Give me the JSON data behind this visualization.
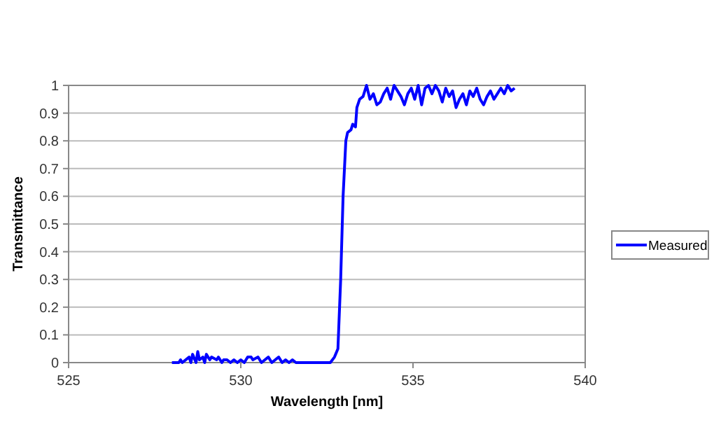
{
  "chart_data": {
    "type": "line",
    "xlabel": "Wavelength [nm]",
    "ylabel": "Transmittance",
    "xlim": [
      525,
      540
    ],
    "xticks": [
      525,
      530,
      535,
      540
    ],
    "ylim": [
      0,
      1
    ],
    "yticks": [
      0,
      0.1,
      0.2,
      0.3,
      0.4,
      0.5,
      0.6,
      0.7,
      0.8,
      0.9,
      1
    ],
    "grid": "y",
    "legend": "right",
    "marker": "none",
    "line_style": "solid",
    "series": [
      {
        "name": "Measured",
        "color": "#0000ff",
        "x": [
          528.0,
          528.2,
          528.25,
          528.3,
          528.5,
          528.55,
          528.6,
          528.7,
          528.75,
          528.8,
          528.9,
          528.95,
          529.0,
          529.1,
          529.15,
          529.3,
          529.35,
          529.45,
          529.5,
          529.6,
          529.7,
          529.8,
          529.9,
          530.0,
          530.1,
          530.2,
          530.3,
          530.35,
          530.5,
          530.6,
          530.7,
          530.8,
          530.9,
          531.0,
          531.1,
          531.2,
          531.3,
          531.4,
          531.5,
          531.6,
          531.8,
          532.0,
          532.3,
          532.6,
          532.72,
          532.82,
          532.9,
          532.97,
          533.05,
          533.1,
          533.2,
          533.25,
          533.33,
          533.37,
          533.45,
          533.55,
          533.65,
          533.75,
          533.85,
          533.95,
          534.05,
          534.15,
          534.25,
          534.35,
          534.45,
          534.55,
          534.65,
          534.75,
          534.85,
          534.95,
          535.05,
          535.15,
          535.25,
          535.35,
          535.45,
          535.55,
          535.65,
          535.75,
          535.85,
          535.95,
          536.05,
          536.15,
          536.25,
          536.35,
          536.45,
          536.55,
          536.65,
          536.75,
          536.85,
          536.95,
          537.05,
          537.15,
          537.25,
          537.35,
          537.45,
          537.55,
          537.65,
          537.75,
          537.85,
          537.95
        ],
        "values": [
          0,
          0,
          0.01,
          0,
          0.02,
          0,
          0.03,
          0,
          0.04,
          0.01,
          0.02,
          0,
          0.03,
          0.01,
          0.02,
          0.01,
          0.02,
          0,
          0.01,
          0.01,
          0,
          0.01,
          0,
          0.01,
          0,
          0.02,
          0.02,
          0.01,
          0.02,
          0,
          0.01,
          0.02,
          0,
          0.01,
          0.02,
          0,
          0.01,
          0,
          0.01,
          0,
          0,
          0,
          0,
          0,
          0.02,
          0.05,
          0.3,
          0.6,
          0.8,
          0.83,
          0.84,
          0.86,
          0.85,
          0.92,
          0.95,
          0.96,
          1.0,
          0.95,
          0.97,
          0.93,
          0.94,
          0.97,
          0.99,
          0.95,
          1.0,
          0.98,
          0.96,
          0.93,
          0.97,
          0.99,
          0.95,
          1.0,
          0.93,
          0.99,
          1.0,
          0.97,
          1.0,
          0.98,
          0.94,
          0.99,
          0.96,
          0.98,
          0.92,
          0.95,
          0.97,
          0.93,
          0.98,
          0.96,
          0.99,
          0.95,
          0.93,
          0.96,
          0.98,
          0.95,
          0.97,
          0.99,
          0.97,
          1.0,
          0.98,
          0.99
        ]
      }
    ]
  }
}
